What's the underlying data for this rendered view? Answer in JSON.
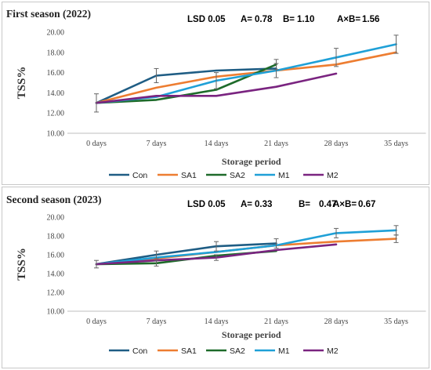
{
  "chart_data": [
    {
      "type": "line",
      "title": "First season (2022)",
      "xlabel": "Storage period",
      "ylabel": "TSS%",
      "categories": [
        "0 days",
        "7 days",
        "14 days",
        "21 days",
        "28 days",
        "35 days"
      ],
      "yticks": [
        "10.00",
        "12.00",
        "14.00",
        "16.00",
        "18.00",
        "20.00"
      ],
      "ylim": [
        10,
        20
      ],
      "lsd": {
        "label": "LSD 0.05",
        "a_label": "A=",
        "a_value": "0.78",
        "b_label": "B=",
        "b_value": "1.10",
        "ab_label": "A×B=",
        "ab_value": "1.56"
      },
      "legend_position": "bottom",
      "grid": false,
      "series": [
        {
          "name": "Con",
          "color": "#1f5d84",
          "values": [
            13.0,
            15.7,
            16.2,
            16.4,
            null,
            null
          ],
          "errors": [
            0.9,
            0.7,
            null,
            null,
            null,
            null
          ]
        },
        {
          "name": "SA1",
          "color": "#ed7d31",
          "values": [
            13.0,
            14.5,
            15.6,
            16.2,
            16.8,
            18.0
          ],
          "errors": [
            null,
            null,
            null,
            null,
            null,
            null
          ]
        },
        {
          "name": "SA2",
          "color": "#1e6b2a",
          "values": [
            13.0,
            13.3,
            14.3,
            16.8,
            null,
            null
          ],
          "errors": [
            null,
            null,
            null,
            0.5,
            null,
            null
          ]
        },
        {
          "name": "M1",
          "color": "#1fa0d7",
          "values": [
            13.0,
            13.6,
            15.2,
            16.2,
            17.5,
            18.8
          ],
          "errors": [
            null,
            null,
            0.8,
            0.7,
            0.9,
            0.9
          ]
        },
        {
          "name": "M2",
          "color": "#7a2480",
          "values": [
            13.0,
            13.7,
            13.7,
            14.6,
            15.9,
            null
          ],
          "errors": [
            null,
            null,
            null,
            null,
            null,
            null
          ]
        }
      ]
    },
    {
      "type": "line",
      "title": "Second season (2023)",
      "xlabel": "Storage period",
      "ylabel": "TSS%",
      "categories": [
        "0 days",
        "7 days",
        "14 days",
        "21 days",
        "28 days",
        "35 days"
      ],
      "yticks": [
        "10.00",
        "12.00",
        "14.00",
        "16.00",
        "18.00",
        "20.00"
      ],
      "ylim": [
        10,
        20
      ],
      "lsd": {
        "label": "LSD 0.05",
        "a_label": "A=",
        "a_value": "0.33",
        "b_label": "B=",
        "b_value": "0.47",
        "ab_label": "A×B=",
        "ab_value": "0.67"
      },
      "legend_position": "bottom",
      "grid": false,
      "series": [
        {
          "name": "Con",
          "color": "#1f5d84",
          "values": [
            15.0,
            16.0,
            16.9,
            17.2,
            null,
            null
          ],
          "errors": [
            0.4,
            0.4,
            0.5,
            0.5,
            null,
            null
          ]
        },
        {
          "name": "SA1",
          "color": "#ed7d31",
          "values": [
            15.0,
            15.6,
            16.3,
            17.0,
            17.4,
            17.7
          ],
          "errors": [
            null,
            null,
            null,
            null,
            null,
            0.4
          ]
        },
        {
          "name": "SA2",
          "color": "#1e6b2a",
          "values": [
            15.0,
            15.1,
            15.9,
            16.4,
            null,
            null
          ],
          "errors": [
            null,
            0.3,
            null,
            null,
            null,
            null
          ]
        },
        {
          "name": "M1",
          "color": "#1fa0d7",
          "values": [
            15.0,
            15.7,
            16.3,
            17.0,
            18.3,
            18.6
          ],
          "errors": [
            null,
            null,
            null,
            null,
            0.5,
            0.5
          ]
        },
        {
          "name": "M2",
          "color": "#7a2480",
          "values": [
            15.0,
            15.4,
            15.7,
            16.5,
            17.1,
            null
          ],
          "errors": [
            null,
            null,
            0.3,
            null,
            null,
            null
          ]
        }
      ]
    }
  ]
}
